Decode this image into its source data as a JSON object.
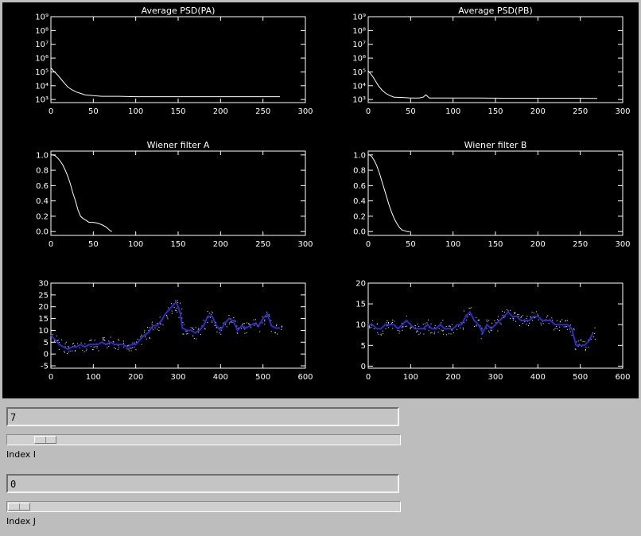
{
  "controls": {
    "index_i": {
      "field_value": "7",
      "label": "Index I",
      "slider_fraction": 0.07
    },
    "index_j": {
      "field_value": "0",
      "label": "Index J",
      "slider_fraction": 0.0
    }
  },
  "chart_data": [
    {
      "type": "line",
      "title": "Average PSD(PA)",
      "xlim": [
        0,
        300
      ],
      "ylim": [
        600,
        1000000000
      ],
      "ylog": true,
      "xticks": [
        0,
        50,
        100,
        150,
        200,
        250,
        300
      ],
      "yticks": [
        1000,
        10000,
        100000,
        1000000,
        10000000,
        100000000,
        1000000000
      ],
      "ytick_labels": [
        "10³",
        "10⁴",
        "10⁵",
        "10⁶",
        "10⁷",
        "10⁸",
        "10⁹"
      ],
      "series": [
        {
          "color": "#ffffff",
          "x": [
            0,
            3,
            6,
            9,
            12,
            16,
            20,
            25,
            30,
            35,
            40,
            50,
            60,
            80,
            100,
            130,
            160,
            200,
            240,
            270
          ],
          "y": [
            200000,
            120000,
            80000,
            50000,
            30000,
            15000,
            8000,
            5000,
            3500,
            2800,
            2200,
            1900,
            1700,
            1700,
            1600,
            1600,
            1600,
            1600,
            1600,
            1600
          ]
        }
      ]
    },
    {
      "type": "line",
      "title": "Average PSD(PB)",
      "xlim": [
        0,
        300
      ],
      "ylim": [
        600,
        1000000000
      ],
      "ylog": true,
      "xticks": [
        0,
        50,
        100,
        150,
        200,
        250,
        300
      ],
      "yticks": [
        1000,
        10000,
        100000,
        1000000,
        10000000,
        100000000,
        1000000000
      ],
      "ytick_labels": [
        "10³",
        "10⁴",
        "10⁵",
        "10⁶",
        "10⁷",
        "10⁸",
        "10⁹"
      ],
      "series": [
        {
          "color": "#ffffff",
          "x": [
            0,
            3,
            6,
            9,
            12,
            16,
            20,
            25,
            30,
            40,
            50,
            60,
            65,
            68,
            72,
            80,
            100,
            130,
            160,
            200,
            240,
            270
          ],
          "y": [
            120000,
            70000,
            40000,
            20000,
            10000,
            5000,
            3000,
            2000,
            1500,
            1400,
            1300,
            1300,
            1500,
            2200,
            1300,
            1300,
            1300,
            1300,
            1250,
            1250,
            1250,
            1200
          ]
        }
      ]
    },
    {
      "type": "line",
      "title": "Wiener filter A",
      "xlim": [
        0,
        300
      ],
      "ylim": [
        -0.05,
        1.05
      ],
      "xticks": [
        0,
        50,
        100,
        150,
        200,
        250,
        300
      ],
      "yticks": [
        0,
        0.2,
        0.4,
        0.6,
        0.8,
        1.0
      ],
      "ytick_labels": [
        "0.0",
        "0.2",
        "0.4",
        "0.6",
        "0.8",
        "1.0"
      ],
      "series": [
        {
          "color": "#ffffff",
          "x": [
            0,
            2,
            5,
            8,
            11,
            14,
            17,
            20,
            23,
            26,
            29,
            32,
            35,
            38,
            41,
            45,
            50,
            55,
            60,
            65,
            68,
            70,
            72
          ],
          "y": [
            1.0,
            1.0,
            0.99,
            0.96,
            0.92,
            0.87,
            0.8,
            0.72,
            0.62,
            0.5,
            0.4,
            0.28,
            0.2,
            0.17,
            0.15,
            0.12,
            0.12,
            0.11,
            0.09,
            0.06,
            0.03,
            0.01,
            0.0
          ]
        }
      ]
    },
    {
      "type": "line",
      "title": "Wiener filter B",
      "xlim": [
        0,
        300
      ],
      "ylim": [
        -0.05,
        1.05
      ],
      "xticks": [
        0,
        50,
        100,
        150,
        200,
        250,
        300
      ],
      "yticks": [
        0,
        0.2,
        0.4,
        0.6,
        0.8,
        1.0
      ],
      "ytick_labels": [
        "0.0",
        "0.2",
        "0.4",
        "0.6",
        "0.8",
        "1.0"
      ],
      "series": [
        {
          "color": "#ffffff",
          "x": [
            0,
            2,
            4,
            7,
            10,
            13,
            16,
            19,
            22,
            25,
            28,
            31,
            34,
            37,
            40,
            43,
            46,
            49
          ],
          "y": [
            1.0,
            1.0,
            0.98,
            0.93,
            0.86,
            0.77,
            0.66,
            0.55,
            0.44,
            0.33,
            0.24,
            0.16,
            0.1,
            0.05,
            0.02,
            0.01,
            0.0,
            0.0
          ]
        }
      ]
    },
    {
      "type": "scatter",
      "title": "",
      "xlim": [
        0,
        600
      ],
      "ylim": [
        -6,
        30
      ],
      "xticks": [
        0,
        100,
        200,
        300,
        400,
        500,
        600
      ],
      "yticks": [
        -5,
        0,
        5,
        10,
        15,
        20,
        25,
        30
      ],
      "ytick_labels": [
        "-5",
        "0",
        "5",
        "10",
        "15",
        "20",
        "25",
        "30"
      ],
      "series": [
        {
          "color": "#2b2bd6",
          "x": [
            0,
            10,
            20,
            30,
            40,
            50,
            60,
            70,
            80,
            90,
            100,
            110,
            120,
            130,
            140,
            150,
            160,
            170,
            180,
            190,
            200,
            210,
            220,
            230,
            240,
            250,
            260,
            270,
            280,
            290,
            295,
            300,
            305,
            310,
            320,
            330,
            340,
            350,
            360,
            370,
            380,
            390,
            400,
            410,
            420,
            430,
            440,
            450,
            460,
            470,
            480,
            490,
            500,
            510,
            520,
            530,
            540
          ],
          "y": [
            8,
            6,
            4,
            3,
            2,
            3,
            3,
            4,
            3,
            4,
            4,
            4,
            5,
            4,
            5,
            4,
            4,
            4,
            3,
            4,
            4,
            6,
            8,
            9,
            12,
            12,
            14,
            17,
            19,
            21,
            22,
            20,
            17,
            11,
            10,
            10,
            9,
            10,
            12,
            16,
            16,
            12,
            10,
            13,
            15,
            14,
            10,
            12,
            11,
            12,
            13,
            12,
            15,
            17,
            12,
            11,
            11
          ]
        }
      ]
    },
    {
      "type": "scatter",
      "title": "",
      "xlim": [
        0,
        600
      ],
      "ylim": [
        -0.5,
        20
      ],
      "xticks": [
        0,
        100,
        200,
        300,
        400,
        500,
        600
      ],
      "yticks": [
        0,
        5,
        10,
        15,
        20
      ],
      "ytick_labels": [
        "0",
        "5",
        "10",
        "15",
        "20"
      ],
      "series": [
        {
          "color": "#2b2bd6",
          "x": [
            0,
            10,
            20,
            30,
            40,
            50,
            60,
            70,
            80,
            90,
            100,
            110,
            120,
            130,
            140,
            150,
            160,
            170,
            180,
            190,
            200,
            210,
            220,
            230,
            240,
            250,
            260,
            270,
            280,
            290,
            300,
            310,
            320,
            330,
            340,
            350,
            360,
            370,
            380,
            390,
            400,
            410,
            420,
            430,
            440,
            450,
            460,
            470,
            480,
            490,
            500,
            510,
            520,
            530
          ],
          "y": [
            10,
            10,
            9,
            9,
            10,
            10,
            10,
            9,
            10,
            11,
            10,
            9,
            9,
            9,
            10,
            9,
            9,
            10,
            9,
            9,
            9,
            10,
            10,
            12,
            13,
            11,
            10,
            8,
            10,
            9,
            10,
            11,
            12,
            13,
            12,
            12,
            11,
            11,
            11,
            12,
            12,
            11,
            11,
            11,
            10,
            10,
            10,
            10,
            9,
            5,
            5,
            5,
            6,
            8
          ]
        }
      ]
    }
  ]
}
